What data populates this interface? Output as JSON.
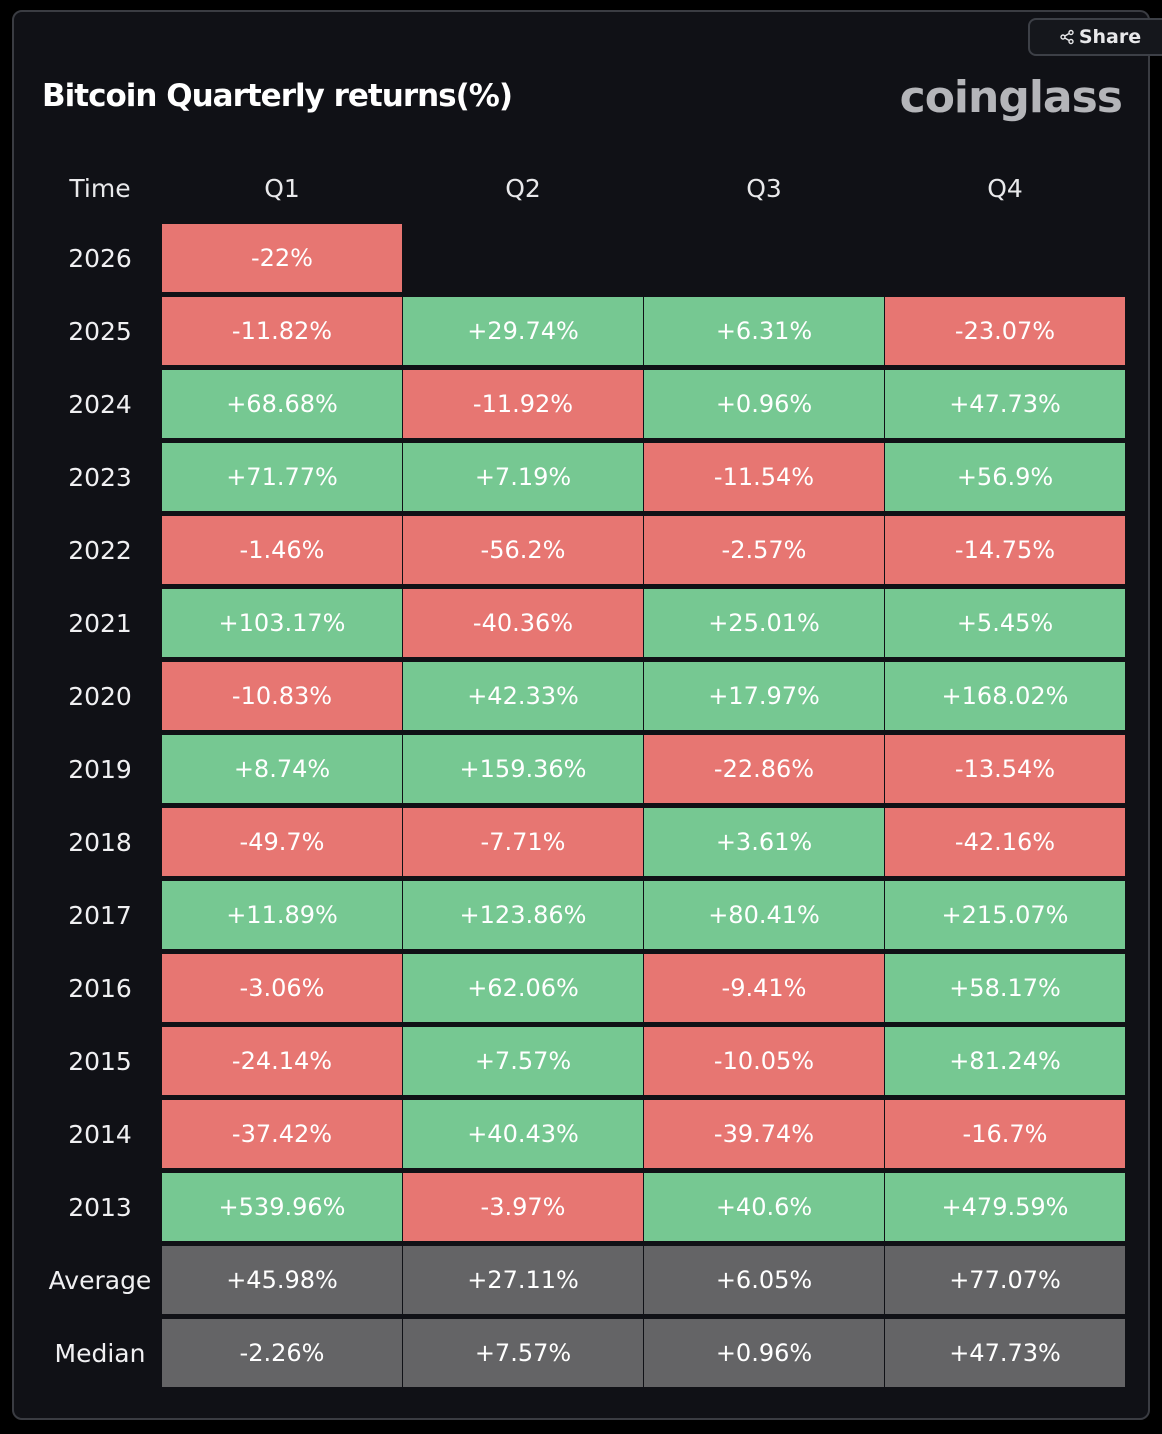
{
  "header": {
    "title": "Bitcoin Quarterly returns(%)",
    "brand": "coinglass",
    "share_label": "Share",
    "share_icon": "share-icon"
  },
  "colors": {
    "positive": "#76c892",
    "negative": "#e77672",
    "summary": "#646466",
    "background": "#101116"
  },
  "chart_data": {
    "type": "table",
    "title": "Bitcoin Quarterly returns(%)",
    "columns": [
      "Time",
      "Q1",
      "Q2",
      "Q3",
      "Q4"
    ],
    "unit": "%",
    "rows": [
      {
        "label": "2026",
        "values": [
          "-22%",
          null,
          null,
          null
        ]
      },
      {
        "label": "2025",
        "values": [
          "-11.82%",
          "+29.74%",
          "+6.31%",
          "-23.07%"
        ]
      },
      {
        "label": "2024",
        "values": [
          "+68.68%",
          "-11.92%",
          "+0.96%",
          "+47.73%"
        ]
      },
      {
        "label": "2023",
        "values": [
          "+71.77%",
          "+7.19%",
          "-11.54%",
          "+56.9%"
        ]
      },
      {
        "label": "2022",
        "values": [
          "-1.46%",
          "-56.2%",
          "-2.57%",
          "-14.75%"
        ]
      },
      {
        "label": "2021",
        "values": [
          "+103.17%",
          "-40.36%",
          "+25.01%",
          "+5.45%"
        ]
      },
      {
        "label": "2020",
        "values": [
          "-10.83%",
          "+42.33%",
          "+17.97%",
          "+168.02%"
        ]
      },
      {
        "label": "2019",
        "values": [
          "+8.74%",
          "+159.36%",
          "-22.86%",
          "-13.54%"
        ]
      },
      {
        "label": "2018",
        "values": [
          "-49.7%",
          "-7.71%",
          "+3.61%",
          "-42.16%"
        ]
      },
      {
        "label": "2017",
        "values": [
          "+11.89%",
          "+123.86%",
          "+80.41%",
          "+215.07%"
        ]
      },
      {
        "label": "2016",
        "values": [
          "-3.06%",
          "+62.06%",
          "-9.41%",
          "+58.17%"
        ]
      },
      {
        "label": "2015",
        "values": [
          "-24.14%",
          "+7.57%",
          "-10.05%",
          "+81.24%"
        ]
      },
      {
        "label": "2014",
        "values": [
          "-37.42%",
          "+40.43%",
          "-39.74%",
          "-16.7%"
        ]
      },
      {
        "label": "2013",
        "values": [
          "+539.96%",
          "-3.97%",
          "+40.6%",
          "+479.59%"
        ]
      }
    ],
    "summary_rows": [
      {
        "label": "Average",
        "values": [
          "+45.98%",
          "+27.11%",
          "+6.05%",
          "+77.07%"
        ]
      },
      {
        "label": "Median",
        "values": [
          "-2.26%",
          "+7.57%",
          "+0.96%",
          "+47.73%"
        ]
      }
    ]
  }
}
